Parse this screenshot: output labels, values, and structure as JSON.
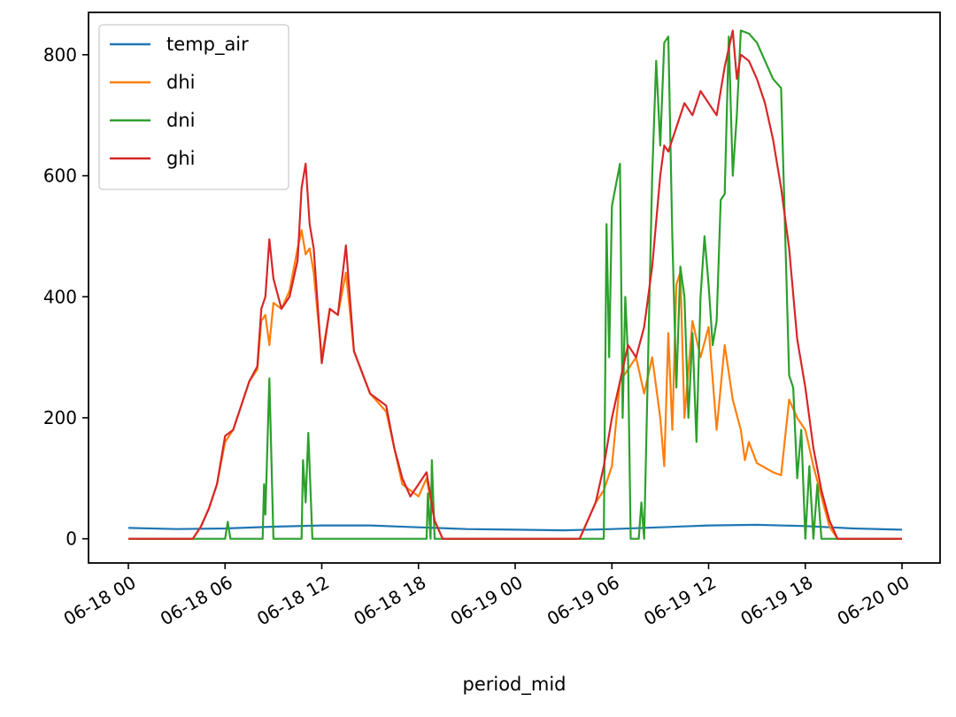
{
  "chart_data": {
    "type": "line",
    "title": "",
    "xlabel": "period_mid",
    "ylabel": "",
    "x_unit": "datetime",
    "xlim": [
      "06-18 00",
      "06-20 00"
    ],
    "ylim": [
      -40,
      870
    ],
    "x_ticks": [
      "06-18 00",
      "06-18 06",
      "06-18 12",
      "06-18 18",
      "06-19 00",
      "06-19 06",
      "06-19 12",
      "06-19 18",
      "06-20 00"
    ],
    "y_ticks": [
      0,
      200,
      400,
      600,
      800
    ],
    "legend": {
      "position": "top-left"
    },
    "grid": false,
    "series": [
      {
        "name": "temp_air",
        "color": "#1f77b4",
        "points": [
          [
            "06-18 00:00",
            18
          ],
          [
            "06-18 03:00",
            16
          ],
          [
            "06-18 06:00",
            17
          ],
          [
            "06-18 09:00",
            20
          ],
          [
            "06-18 12:00",
            22
          ],
          [
            "06-18 15:00",
            22
          ],
          [
            "06-18 18:00",
            19
          ],
          [
            "06-18 21:00",
            16
          ],
          [
            "06-19 00:00",
            15
          ],
          [
            "06-19 03:00",
            14
          ],
          [
            "06-19 06:00",
            16
          ],
          [
            "06-19 09:00",
            19
          ],
          [
            "06-19 12:00",
            22
          ],
          [
            "06-19 15:00",
            23
          ],
          [
            "06-19 18:00",
            21
          ],
          [
            "06-19 21:00",
            17
          ],
          [
            "06-20 00:00",
            15
          ]
        ]
      },
      {
        "name": "dhi",
        "color": "#ff7f0e",
        "points": [
          [
            "06-18 00:00",
            0
          ],
          [
            "06-18 04:00",
            0
          ],
          [
            "06-18 04:30",
            20
          ],
          [
            "06-18 05:00",
            50
          ],
          [
            "06-18 05:30",
            90
          ],
          [
            "06-18 06:00",
            160
          ],
          [
            "06-18 06:30",
            180
          ],
          [
            "06-18 07:00",
            220
          ],
          [
            "06-18 07:30",
            260
          ],
          [
            "06-18 08:00",
            280
          ],
          [
            "06-18 08:15",
            360
          ],
          [
            "06-18 08:30",
            370
          ],
          [
            "06-18 08:45",
            320
          ],
          [
            "06-18 09:00",
            390
          ],
          [
            "06-18 09:30",
            380
          ],
          [
            "06-18 10:00",
            410
          ],
          [
            "06-18 10:30",
            480
          ],
          [
            "06-18 10:45",
            510
          ],
          [
            "06-18 11:00",
            470
          ],
          [
            "06-18 11:15",
            480
          ],
          [
            "06-18 11:30",
            440
          ],
          [
            "06-18 12:00",
            300
          ],
          [
            "06-18 12:30",
            380
          ],
          [
            "06-18 13:00",
            370
          ],
          [
            "06-18 13:30",
            440
          ],
          [
            "06-18 14:00",
            310
          ],
          [
            "06-18 15:00",
            240
          ],
          [
            "06-18 16:00",
            210
          ],
          [
            "06-18 17:00",
            90
          ],
          [
            "06-18 18:00",
            70
          ],
          [
            "06-18 18:30",
            100
          ],
          [
            "06-18 19:00",
            30
          ],
          [
            "06-18 19:30",
            0
          ],
          [
            "06-19 00:00",
            0
          ],
          [
            "06-19 04:00",
            0
          ],
          [
            "06-19 05:00",
            60
          ],
          [
            "06-19 05:30",
            80
          ],
          [
            "06-19 06:00",
            120
          ],
          [
            "06-19 06:30",
            260
          ],
          [
            "06-19 07:00",
            280
          ],
          [
            "06-19 07:30",
            300
          ],
          [
            "06-19 08:00",
            240
          ],
          [
            "06-19 08:30",
            300
          ],
          [
            "06-19 09:00",
            200
          ],
          [
            "06-19 09:15",
            120
          ],
          [
            "06-19 09:30",
            340
          ],
          [
            "06-19 09:45",
            180
          ],
          [
            "06-19 10:00",
            420
          ],
          [
            "06-19 10:15",
            440
          ],
          [
            "06-19 10:30",
            200
          ],
          [
            "06-19 11:00",
            360
          ],
          [
            "06-19 11:30",
            300
          ],
          [
            "06-19 12:00",
            350
          ],
          [
            "06-19 12:30",
            180
          ],
          [
            "06-19 13:00",
            320
          ],
          [
            "06-19 13:30",
            230
          ],
          [
            "06-19 14:00",
            180
          ],
          [
            "06-19 14:15",
            130
          ],
          [
            "06-19 14:30",
            160
          ],
          [
            "06-19 15:00",
            125
          ],
          [
            "06-19 16:00",
            110
          ],
          [
            "06-19 16:30",
            105
          ],
          [
            "06-19 17:00",
            230
          ],
          [
            "06-19 17:30",
            200
          ],
          [
            "06-19 18:00",
            180
          ],
          [
            "06-19 18:30",
            120
          ],
          [
            "06-19 19:00",
            70
          ],
          [
            "06-19 19:30",
            20
          ],
          [
            "06-19 20:00",
            0
          ],
          [
            "06-20 00:00",
            0
          ]
        ]
      },
      {
        "name": "dni",
        "color": "#2ca02c",
        "points": [
          [
            "06-18 00:00",
            0
          ],
          [
            "06-18 06:00",
            0
          ],
          [
            "06-18 06:10",
            28
          ],
          [
            "06-18 06:20",
            0
          ],
          [
            "06-18 08:20",
            0
          ],
          [
            "06-18 08:25",
            90
          ],
          [
            "06-18 08:30",
            40
          ],
          [
            "06-18 08:45",
            265
          ],
          [
            "06-18 09:00",
            0
          ],
          [
            "06-18 10:45",
            0
          ],
          [
            "06-18 10:50",
            130
          ],
          [
            "06-18 11:00",
            60
          ],
          [
            "06-18 11:10",
            175
          ],
          [
            "06-18 11:25",
            0
          ],
          [
            "06-18 18:30",
            0
          ],
          [
            "06-18 18:35",
            75
          ],
          [
            "06-18 18:45",
            0
          ],
          [
            "06-18 18:50",
            130
          ],
          [
            "06-18 19:00",
            0
          ],
          [
            "06-19 05:30",
            0
          ],
          [
            "06-19 05:40",
            520
          ],
          [
            "06-19 05:50",
            300
          ],
          [
            "06-19 06:00",
            550
          ],
          [
            "06-19 06:30",
            620
          ],
          [
            "06-19 06:40",
            200
          ],
          [
            "06-19 06:50",
            400
          ],
          [
            "06-19 07:00",
            300
          ],
          [
            "06-19 07:10",
            0
          ],
          [
            "06-19 07:40",
            0
          ],
          [
            "06-19 07:50",
            60
          ],
          [
            "06-19 08:00",
            0
          ],
          [
            "06-19 08:15",
            300
          ],
          [
            "06-19 08:30",
            600
          ],
          [
            "06-19 08:45",
            790
          ],
          [
            "06-19 09:00",
            650
          ],
          [
            "06-19 09:15",
            820
          ],
          [
            "06-19 09:30",
            830
          ],
          [
            "06-19 09:45",
            500
          ],
          [
            "06-19 10:00",
            250
          ],
          [
            "06-19 10:15",
            450
          ],
          [
            "06-19 10:30",
            400
          ],
          [
            "06-19 10:45",
            200
          ],
          [
            "06-19 11:00",
            340
          ],
          [
            "06-19 11:15",
            160
          ],
          [
            "06-19 11:30",
            400
          ],
          [
            "06-19 11:45",
            500
          ],
          [
            "06-19 12:00",
            420
          ],
          [
            "06-19 12:15",
            320
          ],
          [
            "06-19 12:30",
            360
          ],
          [
            "06-19 12:45",
            560
          ],
          [
            "06-19 13:00",
            570
          ],
          [
            "06-19 13:15",
            830
          ],
          [
            "06-19 13:30",
            600
          ],
          [
            "06-19 13:45",
            700
          ],
          [
            "06-19 14:00",
            840
          ],
          [
            "06-19 14:30",
            835
          ],
          [
            "06-19 15:00",
            820
          ],
          [
            "06-19 15:30",
            790
          ],
          [
            "06-19 16:00",
            760
          ],
          [
            "06-19 16:30",
            745
          ],
          [
            "06-19 17:00",
            270
          ],
          [
            "06-19 17:15",
            250
          ],
          [
            "06-19 17:30",
            100
          ],
          [
            "06-19 17:45",
            180
          ],
          [
            "06-19 18:00",
            0
          ],
          [
            "06-19 18:15",
            120
          ],
          [
            "06-19 18:30",
            0
          ],
          [
            "06-19 18:45",
            90
          ],
          [
            "06-19 19:00",
            0
          ],
          [
            "06-19 19:30",
            0
          ],
          [
            "06-20 00:00",
            0
          ]
        ]
      },
      {
        "name": "ghi",
        "color": "#d62728",
        "points": [
          [
            "06-18 00:00",
            0
          ],
          [
            "06-18 02:00",
            0
          ],
          [
            "06-18 04:00",
            0
          ],
          [
            "06-18 04:30",
            20
          ],
          [
            "06-18 05:00",
            50
          ],
          [
            "06-18 05:30",
            90
          ],
          [
            "06-18 06:00",
            170
          ],
          [
            "06-18 06:30",
            180
          ],
          [
            "06-18 07:00",
            220
          ],
          [
            "06-18 07:30",
            260
          ],
          [
            "06-18 08:00",
            285
          ],
          [
            "06-18 08:15",
            380
          ],
          [
            "06-18 08:30",
            400
          ],
          [
            "06-18 08:45",
            495
          ],
          [
            "06-18 09:00",
            430
          ],
          [
            "06-18 09:30",
            380
          ],
          [
            "06-18 10:00",
            400
          ],
          [
            "06-18 10:30",
            460
          ],
          [
            "06-18 10:45",
            580
          ],
          [
            "06-18 11:00",
            620
          ],
          [
            "06-18 11:15",
            520
          ],
          [
            "06-18 11:30",
            480
          ],
          [
            "06-18 12:00",
            290
          ],
          [
            "06-18 12:30",
            380
          ],
          [
            "06-18 13:00",
            370
          ],
          [
            "06-18 13:30",
            485
          ],
          [
            "06-18 14:00",
            310
          ],
          [
            "06-18 15:00",
            240
          ],
          [
            "06-18 16:00",
            220
          ],
          [
            "06-18 16:30",
            150
          ],
          [
            "06-18 17:00",
            100
          ],
          [
            "06-18 17:30",
            70
          ],
          [
            "06-18 18:00",
            90
          ],
          [
            "06-18 18:30",
            110
          ],
          [
            "06-18 19:00",
            30
          ],
          [
            "06-18 19:30",
            0
          ],
          [
            "06-19 00:00",
            0
          ],
          [
            "06-19 04:00",
            0
          ],
          [
            "06-19 04:30",
            30
          ],
          [
            "06-19 05:00",
            60
          ],
          [
            "06-19 05:30",
            120
          ],
          [
            "06-19 06:00",
            200
          ],
          [
            "06-19 06:30",
            260
          ],
          [
            "06-19 07:00",
            320
          ],
          [
            "06-19 07:30",
            300
          ],
          [
            "06-19 08:00",
            350
          ],
          [
            "06-19 08:30",
            450
          ],
          [
            "06-19 09:00",
            600
          ],
          [
            "06-19 09:15",
            650
          ],
          [
            "06-19 09:30",
            640
          ],
          [
            "06-19 10:00",
            680
          ],
          [
            "06-19 10:30",
            720
          ],
          [
            "06-19 11:00",
            700
          ],
          [
            "06-19 11:30",
            740
          ],
          [
            "06-19 12:00",
            720
          ],
          [
            "06-19 12:30",
            700
          ],
          [
            "06-19 13:00",
            780
          ],
          [
            "06-19 13:30",
            840
          ],
          [
            "06-19 13:45",
            760
          ],
          [
            "06-19 14:00",
            800
          ],
          [
            "06-19 14:30",
            790
          ],
          [
            "06-19 15:00",
            760
          ],
          [
            "06-19 15:30",
            720
          ],
          [
            "06-19 16:00",
            660
          ],
          [
            "06-19 16:30",
            580
          ],
          [
            "06-19 17:00",
            480
          ],
          [
            "06-19 17:30",
            330
          ],
          [
            "06-19 18:00",
            250
          ],
          [
            "06-19 18:30",
            150
          ],
          [
            "06-19 19:00",
            80
          ],
          [
            "06-19 19:30",
            30
          ],
          [
            "06-19 20:00",
            0
          ],
          [
            "06-20 00:00",
            0
          ]
        ]
      }
    ]
  }
}
